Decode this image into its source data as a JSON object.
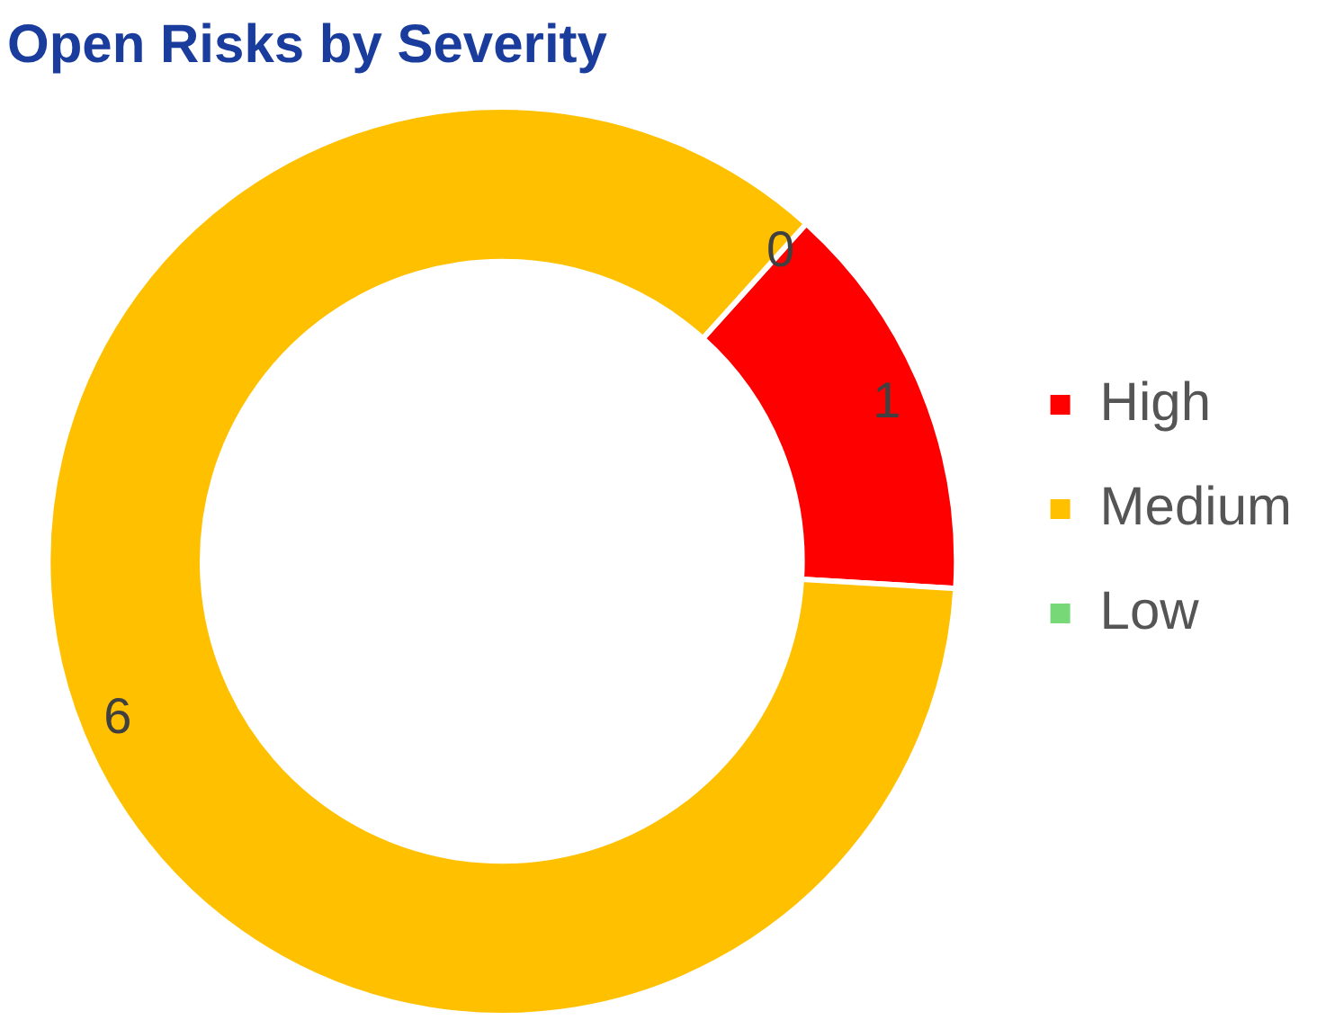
{
  "chart_data": {
    "type": "donut",
    "title": "Open Risks by Severity",
    "categories": [
      "High",
      "Medium",
      "Low"
    ],
    "values": [
      1,
      6,
      0
    ],
    "colors": [
      "#ff0000",
      "#ffc000",
      "#77d877"
    ],
    "value_labels": [
      "1",
      "6",
      "0"
    ],
    "legend": "right"
  }
}
